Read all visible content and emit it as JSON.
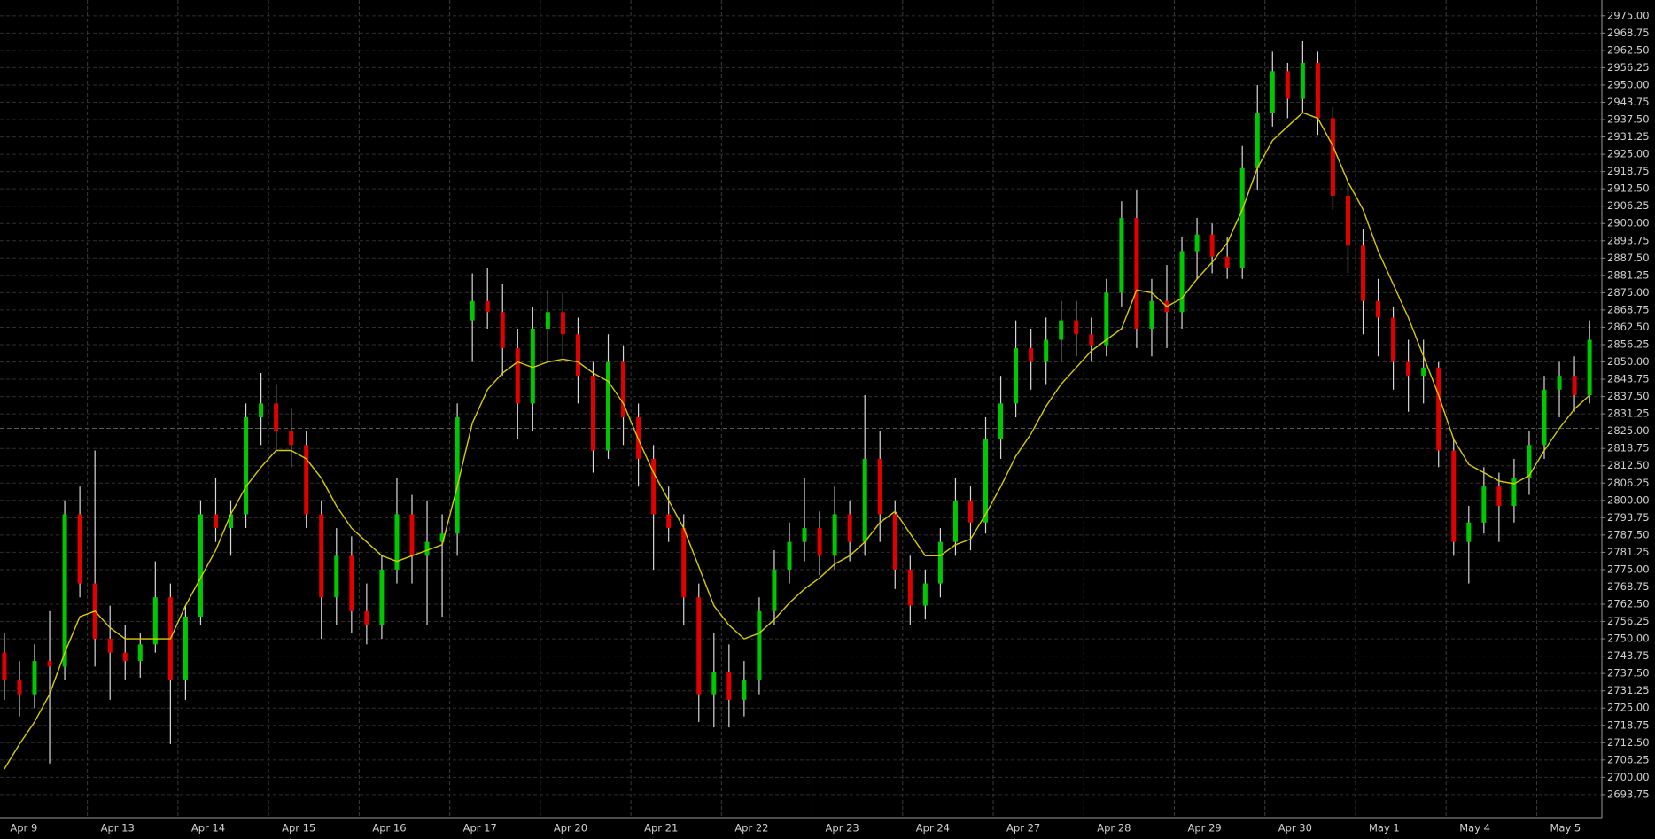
{
  "chart_data": {
    "type": "candlestick",
    "categories": [
      "Apr 9",
      null,
      null,
      null,
      null,
      null,
      "Apr 13",
      null,
      null,
      null,
      null,
      null,
      "Apr 14",
      null,
      null,
      null,
      null,
      null,
      "Apr 15",
      null,
      null,
      null,
      null,
      null,
      "Apr 16",
      null,
      null,
      null,
      null,
      null,
      "Apr 17",
      null,
      null,
      null,
      null,
      null,
      "Apr 20",
      null,
      null,
      null,
      null,
      null,
      "Apr 21",
      null,
      null,
      null,
      null,
      null,
      "Apr 22",
      null,
      null,
      null,
      null,
      null,
      "Apr 23",
      null,
      null,
      null,
      null,
      null,
      "Apr 24",
      null,
      null,
      null,
      null,
      null,
      "Apr 27",
      null,
      null,
      null,
      null,
      null,
      "Apr 28",
      null,
      null,
      null,
      null,
      null,
      "Apr 29",
      null,
      null,
      null,
      null,
      null,
      "Apr 30",
      null,
      null,
      null,
      null,
      null,
      "May 1",
      null,
      null,
      null,
      null,
      null,
      "May 4",
      null,
      null,
      null,
      null,
      null,
      "May 5",
      null,
      null,
      null
    ],
    "open": [
      2745,
      2735,
      2730,
      2742,
      2740,
      2795,
      2770,
      2750,
      2745,
      2742,
      2748,
      2765,
      2735,
      2758,
      2795,
      2790,
      2795,
      2830,
      2835,
      2825,
      2820,
      2795,
      2765,
      2780,
      2760,
      2755,
      2775,
      2795,
      2780,
      2785,
      2788,
      2865,
      2872,
      2868,
      2855,
      2835,
      2862,
      2868,
      2860,
      2845,
      2818,
      2850,
      2830,
      2815,
      2795,
      2790,
      2765,
      2730,
      2738,
      2728,
      2735,
      2760,
      2775,
      2785,
      2790,
      2780,
      2795,
      2785,
      2815,
      2795,
      2775,
      2762,
      2770,
      2785,
      2800,
      2792,
      2822,
      2835,
      2855,
      2850,
      2858,
      2865,
      2860,
      2856,
      2875,
      2902,
      2862,
      2872,
      2868,
      2890,
      2896,
      2888,
      2884,
      2920,
      2940,
      2955,
      2945,
      2958,
      2938,
      2910,
      2892,
      2872,
      2866,
      2850,
      2845,
      2848,
      2818,
      2785,
      2792,
      2805,
      2798,
      2808,
      2820,
      2840,
      2845,
      2838
    ],
    "high": [
      2752,
      2742,
      2748,
      2760,
      2800,
      2805,
      2818,
      2762,
      2755,
      2752,
      2778,
      2770,
      2762,
      2800,
      2808,
      2800,
      2835,
      2846,
      2842,
      2833,
      2825,
      2800,
      2790,
      2787,
      2770,
      2780,
      2808,
      2802,
      2800,
      2795,
      2835,
      2882,
      2884,
      2878,
      2862,
      2870,
      2876,
      2875,
      2866,
      2850,
      2860,
      2856,
      2835,
      2820,
      2805,
      2795,
      2770,
      2752,
      2748,
      2742,
      2765,
      2782,
      2792,
      2808,
      2796,
      2805,
      2800,
      2838,
      2825,
      2800,
      2780,
      2775,
      2790,
      2808,
      2805,
      2830,
      2845,
      2865,
      2862,
      2866,
      2872,
      2872,
      2866,
      2880,
      2908,
      2912,
      2880,
      2885,
      2895,
      2902,
      2900,
      2895,
      2928,
      2950,
      2962,
      2958,
      2966,
      2962,
      2942,
      2915,
      2898,
      2880,
      2870,
      2858,
      2858,
      2850,
      2822,
      2798,
      2812,
      2810,
      2815,
      2825,
      2845,
      2850,
      2852,
      2865
    ],
    "low": [
      2728,
      2722,
      2725,
      2705,
      2735,
      2765,
      2740,
      2728,
      2735,
      2736,
      2745,
      2712,
      2728,
      2755,
      2785,
      2780,
      2790,
      2820,
      2818,
      2812,
      2790,
      2750,
      2755,
      2752,
      2748,
      2750,
      2770,
      2770,
      2755,
      2758,
      2780,
      2850,
      2862,
      2845,
      2822,
      2825,
      2850,
      2852,
      2835,
      2810,
      2815,
      2820,
      2805,
      2775,
      2785,
      2755,
      2720,
      2718,
      2718,
      2722,
      2730,
      2755,
      2770,
      2778,
      2773,
      2775,
      2778,
      2780,
      2785,
      2768,
      2755,
      2757,
      2765,
      2780,
      2782,
      2788,
      2815,
      2830,
      2840,
      2842,
      2850,
      2852,
      2850,
      2852,
      2870,
      2855,
      2852,
      2855,
      2862,
      2880,
      2882,
      2880,
      2880,
      2912,
      2935,
      2938,
      2940,
      2932,
      2905,
      2882,
      2860,
      2852,
      2840,
      2832,
      2835,
      2812,
      2780,
      2770,
      2788,
      2785,
      2792,
      2802,
      2815,
      2830,
      2832,
      2835
    ],
    "close": [
      2735,
      2730,
      2742,
      2740,
      2795,
      2770,
      2750,
      2745,
      2742,
      2748,
      2765,
      2735,
      2758,
      2795,
      2790,
      2795,
      2830,
      2835,
      2825,
      2820,
      2795,
      2765,
      2780,
      2760,
      2755,
      2775,
      2795,
      2780,
      2785,
      2788,
      2830,
      2872,
      2868,
      2855,
      2835,
      2862,
      2868,
      2860,
      2845,
      2818,
      2850,
      2830,
      2815,
      2795,
      2790,
      2765,
      2730,
      2738,
      2728,
      2735,
      2760,
      2775,
      2785,
      2790,
      2780,
      2795,
      2785,
      2815,
      2795,
      2775,
      2762,
      2770,
      2785,
      2800,
      2792,
      2822,
      2835,
      2855,
      2850,
      2858,
      2865,
      2860,
      2856,
      2875,
      2902,
      2862,
      2872,
      2868,
      2890,
      2896,
      2888,
      2884,
      2920,
      2940,
      2955,
      2945,
      2958,
      2938,
      2910,
      2892,
      2872,
      2866,
      2850,
      2845,
      2848,
      2818,
      2785,
      2792,
      2805,
      2798,
      2808,
      2820,
      2840,
      2845,
      2838,
      2858
    ],
    "ma": [
      2703,
      2712,
      2720,
      2730,
      2745,
      2758,
      2760,
      2754,
      2750,
      2750,
      2750,
      2750,
      2762,
      2772,
      2782,
      2795,
      2805,
      2812,
      2818,
      2818,
      2815,
      2808,
      2798,
      2790,
      2785,
      2780,
      2778,
      2780,
      2782,
      2784,
      2805,
      2828,
      2840,
      2846,
      2850,
      2848,
      2850,
      2851,
      2850,
      2846,
      2843,
      2835,
      2822,
      2810,
      2800,
      2790,
      2776,
      2762,
      2755,
      2750,
      2752,
      2757,
      2763,
      2768,
      2772,
      2777,
      2780,
      2785,
      2792,
      2796,
      2788,
      2780,
      2780,
      2784,
      2786,
      2795,
      2805,
      2816,
      2824,
      2834,
      2842,
      2848,
      2854,
      2858,
      2862,
      2876,
      2875,
      2870,
      2873,
      2880,
      2886,
      2893,
      2905,
      2920,
      2930,
      2935,
      2940,
      2938,
      2928,
      2915,
      2905,
      2890,
      2878,
      2866,
      2852,
      2838,
      2822,
      2813,
      2810,
      2807,
      2806,
      2809,
      2818,
      2826,
      2833,
      2838
    ],
    "up_color": "#00c800",
    "down_color": "#e00000",
    "wick_color": "#d8d8d8",
    "ma_color": "#d8cc00",
    "price_line": 2826,
    "ylim": [
      2685.4,
      2980.7
    ],
    "yticks": [
      2693.75,
      {
        "value": 2700,
        "label": "2700.00"
      },
      2706.25,
      {
        "value": 2712.5,
        "label": "2712.50"
      },
      2718.75,
      {
        "value": 2725,
        "label": "2725.00"
      },
      2731.25,
      {
        "value": 2737.5,
        "label": "2737.50"
      },
      2743.75,
      {
        "value": 2750,
        "label": "2750.00"
      },
      2756.25,
      {
        "value": 2762.5,
        "label": "2762.50"
      },
      2768.75,
      {
        "value": 2775,
        "label": "2775.00"
      },
      2781.25,
      {
        "value": 2787.5,
        "label": "2787.50"
      },
      2793.75,
      {
        "value": 2800,
        "label": "2800.00"
      },
      2806.25,
      {
        "value": 2812.5,
        "label": "2812.50"
      },
      2818.75,
      {
        "value": 2825,
        "label": "2825.00"
      },
      2831.25,
      {
        "value": 2837.5,
        "label": "2837.50"
      },
      2843.75,
      {
        "value": 2850,
        "label": "2850.00"
      },
      2856.25,
      {
        "value": 2862.5,
        "label": "2862.50"
      },
      2868.75,
      {
        "value": 2875,
        "label": "2875.00"
      },
      2881.25,
      {
        "value": 2887.5,
        "label": "2887.50"
      },
      2893.75,
      {
        "value": 2900,
        "label": "2900.00"
      },
      2906.25,
      {
        "value": 2912.5,
        "label": "2912.50"
      },
      2918.75,
      {
        "value": 2925,
        "label": "2925.00"
      },
      2931.25,
      {
        "value": 2937.5,
        "label": "2937.50"
      },
      2943.75,
      {
        "value": 2950,
        "label": "2950.00"
      },
      2956.25,
      {
        "value": 2962.5,
        "label": "2962.50"
      },
      2968.75,
      {
        "value": 2975,
        "label": "2975.00"
      }
    ],
    "grid": true
  }
}
